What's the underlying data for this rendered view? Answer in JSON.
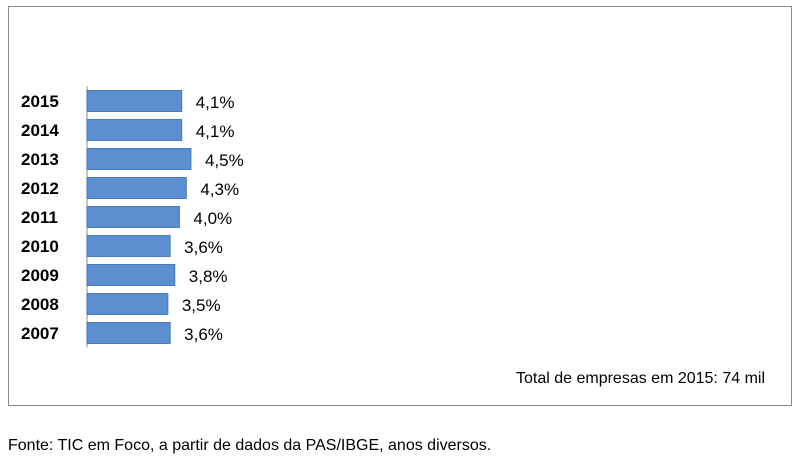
{
  "chart_data": {
    "type": "bar",
    "orientation": "horizontal",
    "categories": [
      "2015",
      "2014",
      "2013",
      "2012",
      "2011",
      "2010",
      "2009",
      "2008",
      "2007"
    ],
    "values": [
      4.1,
      4.1,
      4.5,
      4.3,
      4.0,
      3.6,
      3.8,
      3.5,
      3.6
    ],
    "data_labels": [
      "4,1%",
      "4,1%",
      "4,5%",
      "4,3%",
      "4,0%",
      "3,6%",
      "3,8%",
      "3,5%",
      "3,6%"
    ],
    "title": "",
    "xlabel": "",
    "ylabel": "",
    "unit": "%",
    "grid": false,
    "bar_color": "#5b8fd0",
    "bar_border_color": "#4a7ab8"
  },
  "note": "Total de empresas em 2015: 74 mil",
  "source": "Fonte: TIC em Foco, a partir de dados da PAS/IBGE, anos diversos."
}
